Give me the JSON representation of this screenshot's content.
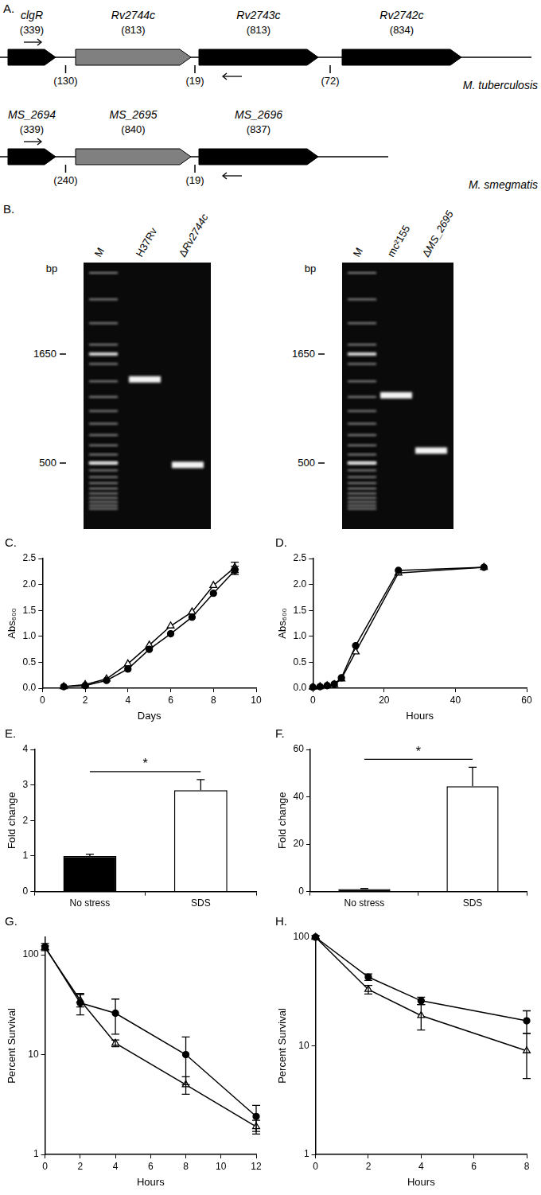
{
  "gene_map": {
    "title": "A.",
    "tracks": [
      {
        "organism": "M. tuberculosis",
        "genes": [
          {
            "name": "clgR",
            "length": "(339)",
            "color": "#000000"
          },
          {
            "name": "Rv2744c",
            "length": "(813)",
            "color": "#808080"
          },
          {
            "name": "Rv2743c",
            "length": "(813)",
            "color": "#000000"
          },
          {
            "name": "Rv2742c",
            "length": "(834)",
            "color": "#000000"
          }
        ],
        "spacers": [
          "(130)",
          "(19)",
          "(72)"
        ]
      },
      {
        "organism": "M. smegmatis",
        "genes": [
          {
            "name": "MS_2694",
            "length": "(339)",
            "color": "#000000"
          },
          {
            "name": "MS_2695",
            "length": "(840)",
            "color": "#808080"
          },
          {
            "name": "MS_2696",
            "length": "(837)",
            "color": "#000000"
          }
        ],
        "spacers": [
          "(240)",
          "(19)"
        ]
      }
    ]
  },
  "gel_panel": {
    "title": "B.",
    "unit": "bp",
    "gels": [
      {
        "markers": [
          1650,
          500
        ],
        "lanes": [
          {
            "label": "M"
          },
          {
            "label": "H37Rv",
            "band": 1250
          },
          {
            "label": "ΔRv2744c",
            "band": 490
          }
        ]
      },
      {
        "markers": [
          1650,
          500
        ],
        "lanes": [
          {
            "label": "M"
          },
          {
            "label": "mc²155",
            "band": 1050
          },
          {
            "label": "ΔMS_2695",
            "band": 573
          }
        ]
      }
    ]
  },
  "chart_data": [
    {
      "type": "line",
      "title": "C.",
      "x_label": "Days",
      "y_label": "Abs₆₀₀",
      "grid": false,
      "x": [
        1,
        2,
        3,
        4,
        5,
        6,
        7,
        8,
        9
      ],
      "xlim": [
        0,
        10
      ],
      "xticks": [
        0,
        2,
        4,
        6,
        8,
        10
      ],
      "ylim": [
        0,
        2.5
      ],
      "yticks": [
        {
          "value": 0,
          "label": "0.0"
        },
        {
          "value": 0.5,
          "label": "0.5"
        },
        {
          "value": 1,
          "label": "1.0"
        },
        {
          "value": 1.5,
          "label": "1.5"
        },
        {
          "value": 2,
          "label": "2.0"
        },
        {
          "value": 2.5,
          "label": "2.5"
        }
      ],
      "series": [
        {
          "color": "#000000",
          "marker": "circle",
          "values": [
            0.03,
            0.05,
            0.15,
            0.37,
            0.75,
            1.05,
            1.37,
            1.83,
            2.27
          ],
          "errors": [
            null,
            null,
            null,
            null,
            null,
            null,
            null,
            null,
            0.08
          ]
        },
        {
          "color": "#000000",
          "marker": "triangle-open",
          "values": [
            0.03,
            0.07,
            0.18,
            0.47,
            0.83,
            1.2,
            1.47,
            1.98,
            2.33
          ],
          "errors": [
            null,
            null,
            null,
            null,
            null,
            null,
            null,
            null,
            0.1
          ]
        }
      ]
    },
    {
      "type": "line",
      "title": "D.",
      "x_label": "Hours",
      "y_label": "Abs₆₀₀",
      "grid": false,
      "x": [
        0,
        2,
        4,
        6,
        8,
        12,
        24,
        48
      ],
      "xlim": [
        0,
        60
      ],
      "xticks": [
        0,
        20,
        40,
        60
      ],
      "ylim": [
        0,
        2.5
      ],
      "yticks": [
        {
          "value": 0,
          "label": "0.0"
        },
        {
          "value": 0.5,
          "label": "0.5"
        },
        {
          "value": 1,
          "label": "1.0"
        },
        {
          "value": 1.5,
          "label": "1.5"
        },
        {
          "value": 2,
          "label": "2.0"
        },
        {
          "value": 2.5,
          "label": "2.5"
        }
      ],
      "series": [
        {
          "color": "#000000",
          "marker": "circle",
          "values": [
            0.02,
            0.03,
            0.05,
            0.08,
            0.2,
            0.82,
            2.27,
            2.33
          ]
        },
        {
          "color": "#000000",
          "marker": "triangle-open",
          "values": [
            0.02,
            0.03,
            0.05,
            0.07,
            0.18,
            0.7,
            2.22,
            2.33
          ]
        }
      ]
    },
    {
      "type": "bar",
      "title": "E.",
      "y_label": "Fold change",
      "grid": false,
      "categories": [
        "No stress",
        "SDS"
      ],
      "values": [
        1.0,
        2.85
      ],
      "errors": [
        0.05,
        0.3
      ],
      "colors": [
        "#000000",
        "#ffffff"
      ],
      "ylim": [
        0,
        4
      ],
      "yticks": [
        0,
        1,
        2,
        3,
        4
      ],
      "annotations": [
        {
          "text": "*"
        }
      ]
    },
    {
      "type": "bar",
      "title": "F.",
      "y_label": "Fold change",
      "grid": false,
      "categories": [
        "No stress",
        "SDS"
      ],
      "values": [
        1.0,
        44.5
      ],
      "errors": [
        0.3,
        8
      ],
      "colors": [
        "#000000",
        "#ffffff"
      ],
      "ylim": [
        0,
        60
      ],
      "yticks": [
        0,
        20,
        40,
        60
      ],
      "annotations": [
        {
          "text": "*"
        }
      ]
    },
    {
      "type": "line",
      "title": "G.",
      "x_label": "Hours",
      "y_label": "Percent Survival",
      "grid": false,
      "log": "y",
      "x": [
        0,
        2,
        4,
        8,
        12
      ],
      "xlim": [
        0,
        12
      ],
      "xticks": [
        0,
        2,
        4,
        6,
        8,
        10,
        12
      ],
      "ylim": [
        1,
        150
      ],
      "yticks": [
        1,
        10,
        100
      ],
      "series": [
        {
          "color": "#000000",
          "marker": "circle",
          "values": [
            120,
            33,
            26,
            10,
            2.4
          ],
          "errors": [
            10,
            8,
            10,
            5,
            0.7
          ]
        },
        {
          "color": "#000000",
          "marker": "triangle-open",
          "values": [
            118,
            35,
            13,
            5,
            1.9
          ],
          "errors": [
            5,
            5,
            1,
            1,
            0.3
          ]
        }
      ]
    },
    {
      "type": "line",
      "title": "H.",
      "x_label": "Hours",
      "y_label": "Percent Survival",
      "grid": false,
      "log": "y",
      "x": [
        0,
        2,
        4,
        8
      ],
      "xlim": [
        0,
        8
      ],
      "xticks": [
        0,
        2,
        4,
        6,
        8
      ],
      "ylim": [
        1,
        100
      ],
      "yticks": [
        1,
        10,
        100
      ],
      "series": [
        {
          "color": "#000000",
          "marker": "circle",
          "values": [
            100,
            43,
            26,
            17
          ],
          "errors": [
            3,
            3,
            2,
            4
          ]
        },
        {
          "color": "#000000",
          "marker": "triangle-open",
          "values": [
            100,
            33,
            19,
            9
          ],
          "errors": [
            3,
            3,
            5,
            4
          ]
        }
      ]
    }
  ]
}
